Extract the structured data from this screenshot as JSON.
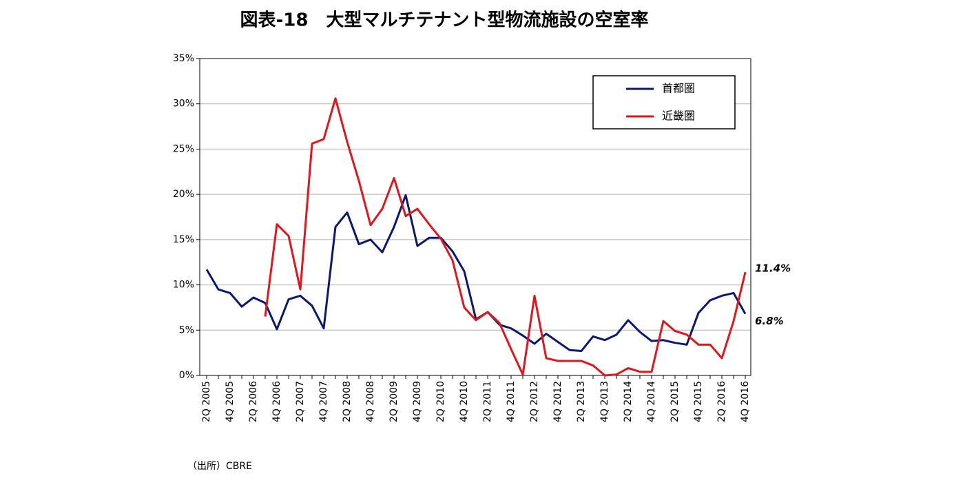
{
  "chart_data": {
    "type": "line",
    "title": "図表-18　大型マルチテナント型物流施設の空室率",
    "source": "（出所）CBRE",
    "categories": [
      "2Q 2005",
      null,
      "4Q 2005",
      null,
      "2Q 2006",
      null,
      "4Q 2006",
      null,
      "2Q 2007",
      null,
      "4Q 2007",
      null,
      "2Q 2008",
      null,
      "4Q 2008",
      null,
      "2Q 2009",
      null,
      "4Q 2009",
      null,
      "2Q 2010",
      null,
      "4Q 2010",
      null,
      "2Q 2011",
      null,
      "4Q 2011",
      null,
      "2Q 2012",
      null,
      "4Q 2012",
      null,
      "2Q 2013",
      null,
      "4Q 2013",
      null,
      "2Q 2014",
      null,
      "4Q 2014",
      null,
      "2Q 2015",
      null,
      "4Q 2015",
      null,
      "2Q 2016",
      null,
      "4Q 2016"
    ],
    "series": [
      {
        "name": "首都圏",
        "color": "#0b1770",
        "values": [
          11.7,
          9.5,
          9.1,
          7.6,
          8.6,
          8.0,
          5.1,
          8.4,
          8.8,
          7.7,
          5.2,
          16.4,
          18.0,
          14.5,
          15.0,
          13.6,
          16.4,
          19.9,
          14.3,
          15.2,
          15.2,
          13.7,
          11.5,
          6.2,
          7.0,
          5.6,
          5.2,
          4.4,
          3.5,
          4.6,
          3.7,
          2.8,
          2.7,
          4.3,
          3.9,
          4.5,
          6.1,
          4.8,
          3.8,
          3.9,
          3.6,
          3.4,
          6.9,
          8.3,
          8.8,
          9.1,
          6.8
        ],
        "value_labels": [
          null,
          null,
          null,
          null,
          null,
          null,
          null,
          null,
          null,
          null,
          null,
          null,
          null,
          null,
          null,
          null,
          null,
          null,
          null,
          null,
          null,
          null,
          null,
          null,
          null,
          null,
          null,
          null,
          null,
          null,
          null,
          null,
          null,
          null,
          null,
          null,
          null,
          null,
          null,
          null,
          null,
          null,
          null,
          null,
          null,
          null,
          "6.8%"
        ]
      },
      {
        "name": "近畿圏",
        "color": "#e3151c",
        "values": [
          null,
          null,
          null,
          null,
          null,
          6.5,
          16.7,
          15.4,
          9.5,
          25.6,
          26.1,
          30.6,
          25.8,
          21.5,
          16.6,
          18.4,
          21.8,
          17.6,
          18.4,
          16.7,
          15.1,
          12.7,
          7.5,
          6.1,
          7.0,
          5.8,
          2.9,
          0.1,
          8.8,
          1.9,
          1.6,
          1.6,
          1.6,
          1.1,
          0.0,
          0.1,
          0.8,
          0.4,
          0.4,
          6.0,
          4.9,
          4.5,
          3.4,
          3.4,
          1.9,
          6.0,
          11.4
        ],
        "value_labels": [
          null,
          null,
          null,
          null,
          null,
          null,
          null,
          null,
          null,
          null,
          null,
          null,
          null,
          null,
          null,
          null,
          null,
          null,
          null,
          null,
          null,
          null,
          null,
          null,
          null,
          null,
          null,
          null,
          null,
          null,
          null,
          null,
          null,
          null,
          null,
          null,
          null,
          null,
          null,
          null,
          null,
          null,
          null,
          null,
          null,
          null,
          "11.4%"
        ]
      }
    ],
    "ylim": [
      0,
      35
    ],
    "yticks": [
      {
        "value": 0,
        "label": "0%"
      },
      {
        "value": 5,
        "label": "5%"
      },
      {
        "value": 10,
        "label": "10%"
      },
      {
        "value": 15,
        "label": "15%"
      },
      {
        "value": 20,
        "label": "20%"
      },
      {
        "value": 25,
        "label": "25%"
      },
      {
        "value": 30,
        "label": "30%"
      },
      {
        "value": 35,
        "label": "35%"
      }
    ],
    "grid": true,
    "legend": "upper right"
  }
}
